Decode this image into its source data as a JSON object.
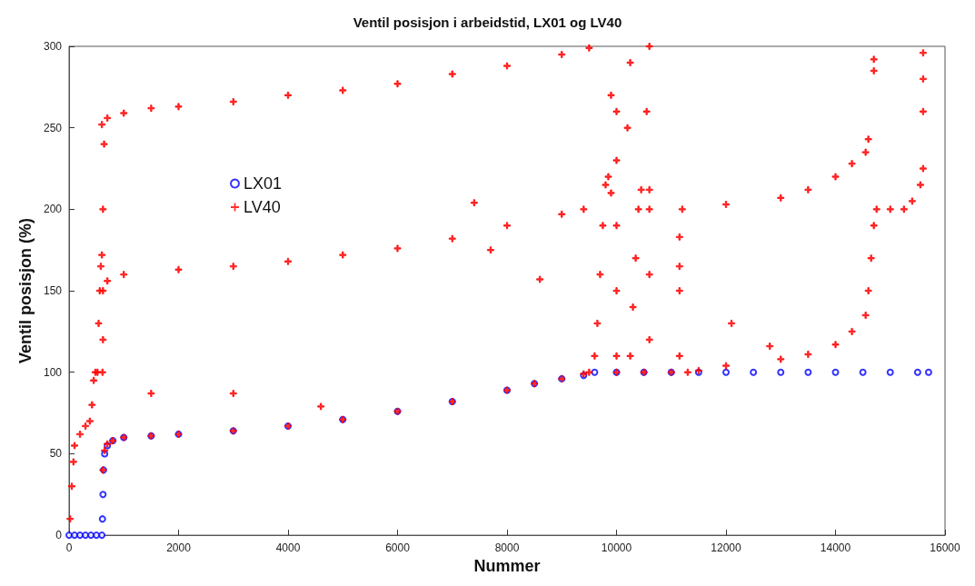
{
  "chart_data": {
    "type": "scatter",
    "title": "Ventil posisjon i arbeidstid, LX01 og LV40",
    "xlabel": "Nummer",
    "ylabel": "Ventil posisjon (%)",
    "xlim": [
      0,
      16000
    ],
    "xticks": [
      0,
      2000,
      4000,
      6000,
      8000,
      10000,
      12000,
      14000,
      16000
    ],
    "ylim": [
      0,
      300
    ],
    "yticks": [
      0,
      50,
      100,
      150,
      200,
      250,
      300
    ],
    "grid": false,
    "legend": "top left",
    "series": [
      {
        "name": "LX01",
        "color": "#0000ff",
        "marker": "circle",
        "x": [
          0,
          100,
          200,
          300,
          400,
          500,
          600,
          610,
          620,
          630,
          650,
          700,
          800,
          1000,
          1500,
          2000,
          3000,
          4000,
          5000,
          6000,
          7000,
          8000,
          8500,
          9000,
          9400,
          9600,
          10000,
          10500,
          11000,
          11500,
          12000,
          12500,
          13000,
          13500,
          14000,
          14500,
          15000,
          15500,
          15700
        ],
        "values": [
          0,
          0,
          0,
          0,
          0,
          0,
          0,
          10,
          25,
          40,
          50,
          55,
          58,
          60,
          61,
          62,
          64,
          67,
          71,
          76,
          82,
          89,
          93,
          96,
          98,
          100,
          100,
          100,
          100,
          100,
          100,
          100,
          100,
          100,
          100,
          100,
          100,
          100,
          100
        ]
      },
      {
        "name": "LV40",
        "color": "#ff0000",
        "marker": "cross",
        "x": [
          20,
          50,
          80,
          100,
          200,
          300,
          380,
          420,
          450,
          480,
          520,
          540,
          560,
          580,
          600,
          610,
          620,
          620,
          640,
          620,
          650,
          700,
          800,
          1000,
          1500,
          2000,
          3000,
          4000,
          5000,
          6000,
          7000,
          8000,
          8500,
          9000,
          9400,
          9500,
          10000,
          10500,
          11000,
          11300,
          11500,
          12000,
          13000,
          13500,
          14000,
          14300,
          14550,
          14600,
          14650,
          14700,
          14750,
          15000,
          15250,
          15400,
          15550,
          15600,
          620,
          700,
          1000,
          2000,
          3000,
          4000,
          5000,
          6000,
          7000,
          8000,
          9000,
          9400,
          11200,
          12000,
          13000,
          13500,
          14000,
          14300,
          14550,
          14600,
          600,
          700,
          1000,
          1500,
          2000,
          3000,
          4000,
          5000,
          6000,
          7000,
          8000,
          9000,
          9500,
          1500,
          3000,
          4600,
          7400,
          7700,
          8600,
          12100,
          12800,
          9600,
          9650,
          9700,
          9750,
          9800,
          9850,
          9900,
          9900,
          10000,
          10000,
          10000,
          10000,
          10000,
          10250,
          10300,
          10350,
          10400,
          10450,
          10200,
          10250,
          10600,
          10600,
          10600,
          10600,
          10550,
          10600,
          11150,
          11150,
          11150,
          11150,
          15600,
          15600,
          15600,
          14700,
          14700
        ],
        "values": [
          10,
          30,
          45,
          55,
          62,
          67,
          70,
          80,
          95,
          100,
          100,
          130,
          150,
          165,
          172,
          100,
          120,
          200,
          240,
          40,
          52,
          56,
          58,
          60,
          61,
          62,
          64,
          67,
          71,
          76,
          82,
          89,
          93,
          96,
          99,
          100,
          100,
          100,
          100,
          100,
          101,
          104,
          108,
          111,
          117,
          125,
          135,
          150,
          170,
          190,
          200,
          200,
          200,
          205,
          215,
          225,
          150,
          156,
          160,
          163,
          165,
          168,
          172,
          176,
          182,
          190,
          197,
          200,
          200,
          203,
          207,
          212,
          220,
          228,
          235,
          243,
          252,
          256,
          259,
          262,
          263,
          266,
          270,
          273,
          277,
          283,
          288,
          295,
          299,
          87,
          87,
          79,
          204,
          175,
          157,
          130,
          116,
          110,
          130,
          160,
          190,
          215,
          220,
          210,
          270,
          110,
          150,
          190,
          230,
          260,
          110,
          140,
          170,
          200,
          212,
          250,
          290,
          120,
          160,
          200,
          212,
          260,
          300,
          110,
          150,
          165,
          183,
          260,
          280,
          296,
          285,
          292
        ]
      }
    ]
  }
}
